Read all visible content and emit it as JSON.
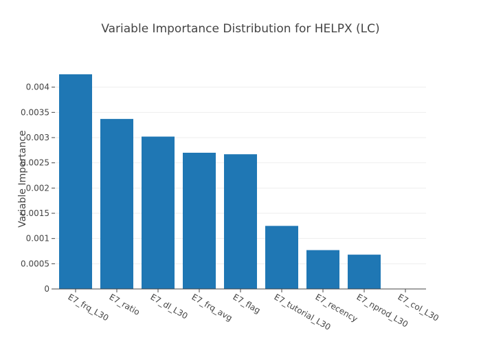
{
  "chart_data": {
    "type": "bar",
    "title": "Variable Importance Distribution for HELPX (LC)",
    "xlabel": "",
    "ylabel": "Variable Importance",
    "categories": [
      "E7_frq_L30",
      "E7_ratio",
      "E7_dl_L30",
      "E7_frq_avg",
      "E7_flag",
      "E7_tutorial_L30",
      "E7_recency",
      "E7_nprod_L30",
      "E7_col_L30"
    ],
    "values": [
      0.00423,
      0.00337,
      0.00302,
      0.0027,
      0.00267,
      0.00125,
      0.00077,
      0.00068,
      0.0
    ],
    "ylim": [
      0,
      0.0042
    ],
    "yticks": [
      0,
      0.0005,
      0.001,
      0.0015,
      0.002,
      0.0025,
      0.003,
      0.0035,
      0.004
    ],
    "ytick_labels": [
      "0",
      "0.0005",
      "0.001",
      "0.0015",
      "0.002",
      "0.0025",
      "0.003",
      "0.0035",
      "0.004"
    ],
    "grid": true,
    "bar_color": "#1f77b4"
  }
}
